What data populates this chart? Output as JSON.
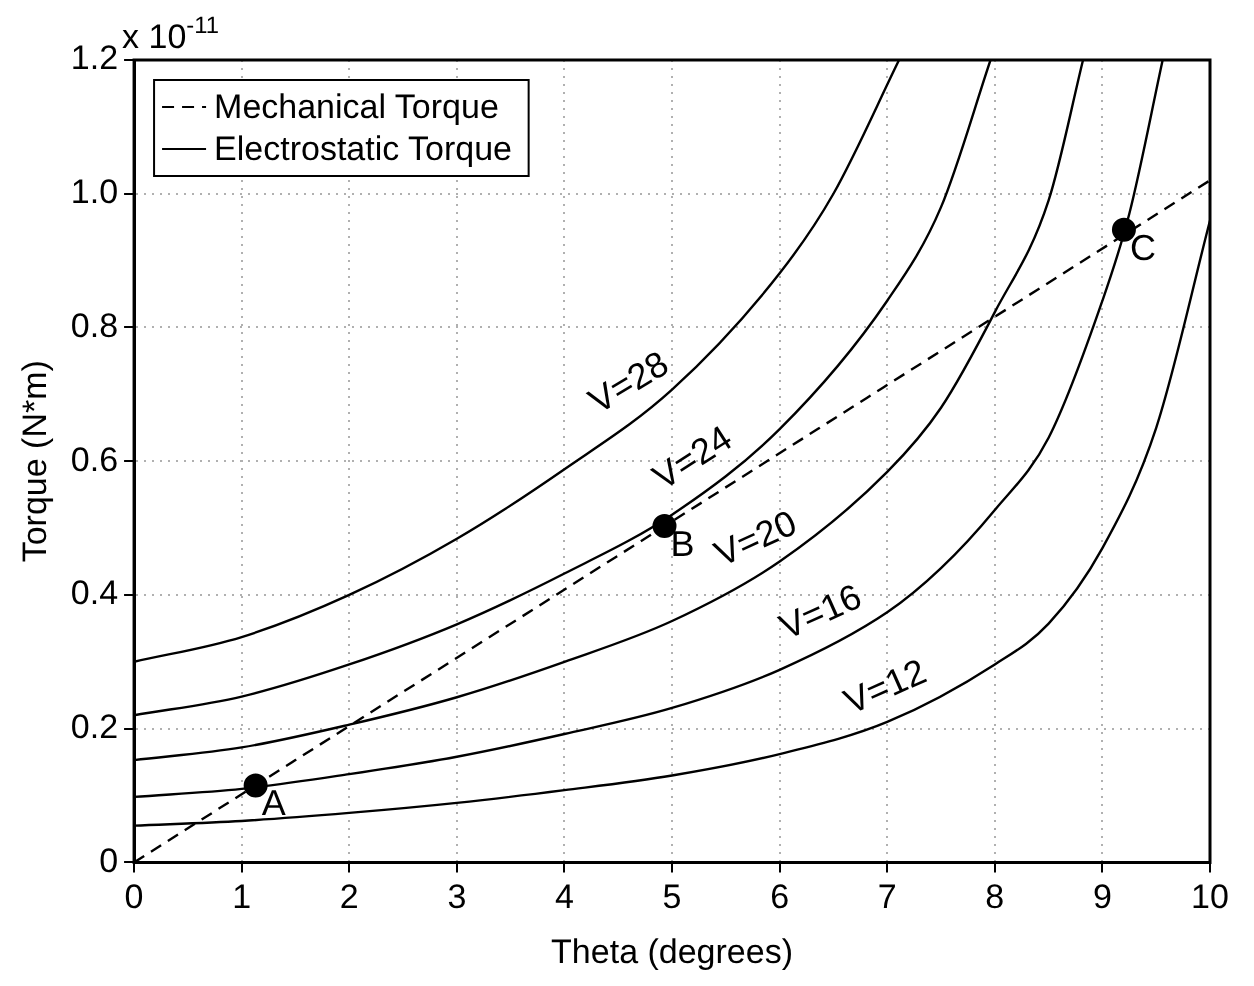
{
  "chart_data": {
    "type": "line",
    "xlabel": "Theta (degrees)",
    "ylabel": "Torque (N*m)",
    "xlim": [
      0,
      10
    ],
    "xticks": [
      0,
      1,
      2,
      3,
      4,
      5,
      6,
      7,
      8,
      9,
      10
    ],
    "ylim": [
      0,
      1.2
    ],
    "yticks": [
      0,
      0.2,
      0.4,
      0.6,
      0.8,
      {
        "value": 1,
        "label": "1.0"
      },
      1.2
    ],
    "grid": true,
    "legend": "top left",
    "series": [
      {
        "name": "Mechanical Torque",
        "type": "line",
        "line_style": "dashed",
        "color": "#000000",
        "x": [
          0,
          10
        ],
        "values": [
          0,
          1.02
        ]
      },
      {
        "name": "Electrostatic Torque",
        "type": "line",
        "line_style": "solid",
        "color": "#000000",
        "x": [
          0,
          1,
          2,
          3,
          4,
          5,
          6,
          7,
          8,
          8.5,
          9,
          9.5,
          10
        ],
        "values": [
          0.055,
          0.062,
          0.074,
          0.089,
          0.108,
          0.13,
          0.162,
          0.21,
          0.296,
          0.357,
          0.47,
          0.65,
          0.96
        ]
      },
      {
        "type": "line",
        "line_style": "solid",
        "color": "#000000",
        "x": [
          0,
          1,
          2,
          3,
          4,
          5,
          6,
          7,
          7.5,
          8,
          8.5,
          9,
          9.25,
          9.56
        ],
        "values": [
          0.098,
          0.11,
          0.132,
          0.158,
          0.192,
          0.231,
          0.288,
          0.374,
          0.44,
          0.527,
          0.635,
          0.84,
          0.97,
          1.2
        ]
      },
      {
        "type": "line",
        "line_style": "solid",
        "color": "#000000",
        "x": [
          0,
          1,
          2,
          3,
          4,
          5,
          6,
          7,
          7.5,
          8,
          8.5,
          8.82
        ],
        "values": [
          0.153,
          0.172,
          0.206,
          0.247,
          0.3,
          0.361,
          0.45,
          0.584,
          0.68,
          0.823,
          0.99,
          1.2
        ]
      },
      {
        "type": "line",
        "line_style": "solid",
        "color": "#000000",
        "x": [
          0,
          1,
          2,
          3,
          4,
          5,
          6,
          7,
          7.5,
          7.96
        ],
        "values": [
          0.22,
          0.248,
          0.296,
          0.356,
          0.432,
          0.52,
          0.648,
          0.84,
          0.98,
          1.2
        ]
      },
      {
        "type": "line",
        "line_style": "solid",
        "color": "#000000",
        "x": [
          0,
          1,
          2,
          3,
          4,
          5,
          6,
          6.5,
          7.11
        ],
        "values": [
          0.3,
          0.337,
          0.4,
          0.484,
          0.588,
          0.707,
          0.881,
          1.0,
          1.2
        ]
      },
      {
        "type": "scatter",
        "marker": "circle",
        "color": "#000000",
        "x": [
          1.13,
          4.93,
          9.2
        ],
        "values": [
          0.115,
          0.503,
          0.946
        ]
      }
    ],
    "annotations": [
      "x 10$^{-11}$",
      {
        "text": "A",
        "x": 1.13,
        "y": 0.115
      },
      {
        "text": "B",
        "x": 4.93,
        "y": 0.503
      },
      {
        "text": "C",
        "x": 9.2,
        "y": 0.946
      },
      {
        "text": "V=28",
        "x": 4.75,
        "y": 0.677
      },
      {
        "text": "V=24",
        "x": 5.35,
        "y": 0.565
      },
      {
        "text": "V=20",
        "x": 5.9,
        "y": 0.441
      },
      {
        "text": "V=16",
        "x": 6.5,
        "y": 0.331
      },
      {
        "text": "V=12",
        "x": 7.1,
        "y": 0.219
      }
    ]
  }
}
